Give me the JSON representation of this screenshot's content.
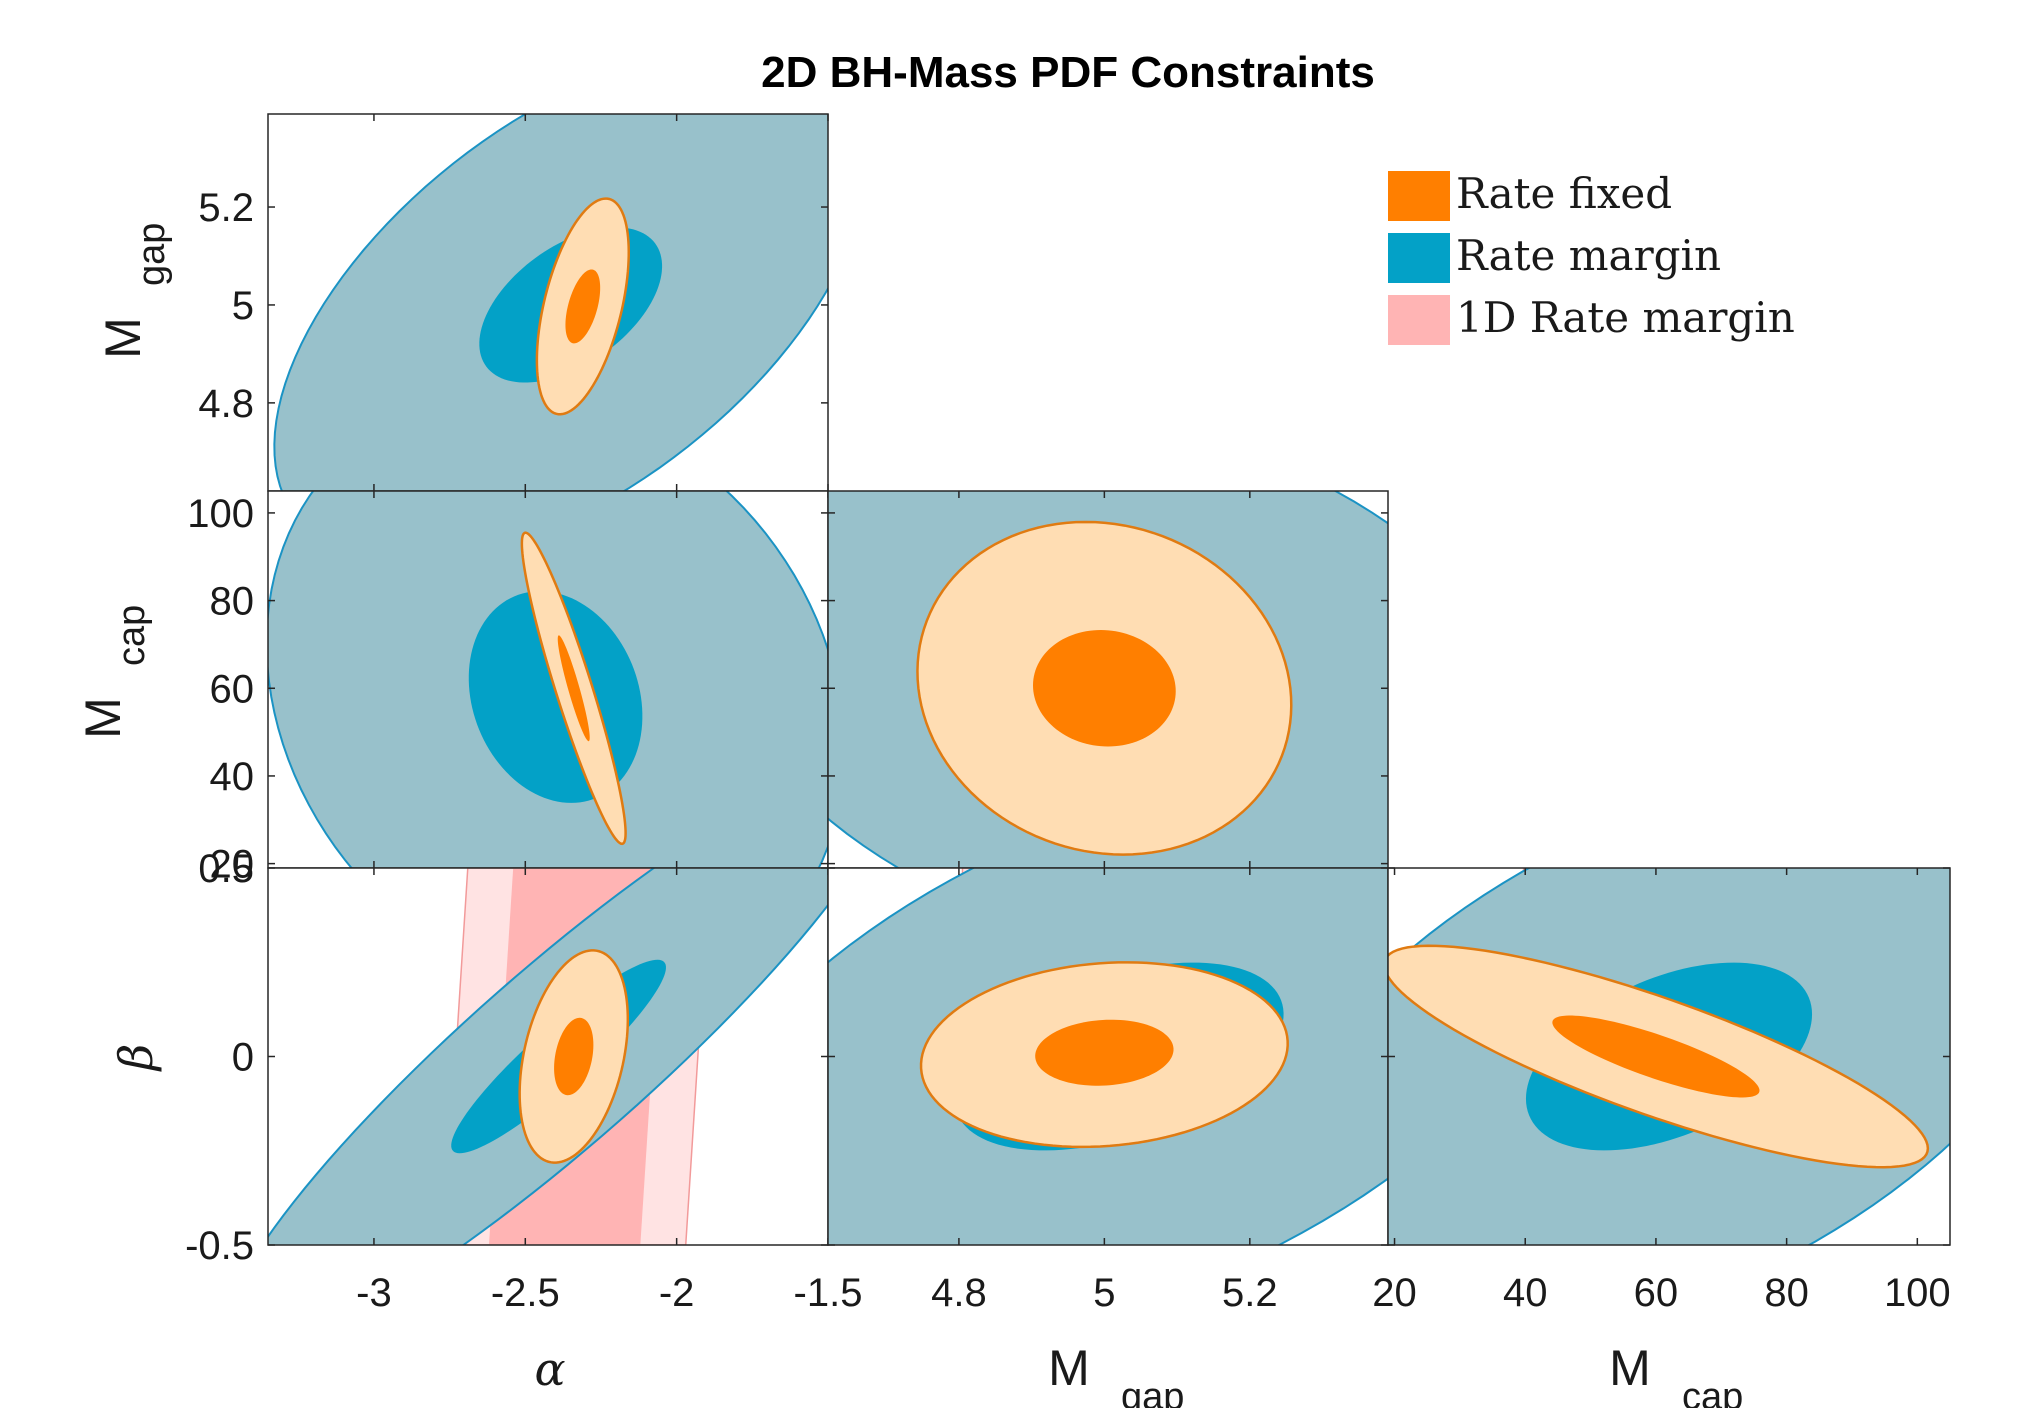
{
  "chart_data": {
    "type": "contour-corner-plot",
    "title": "2D BH-Mass PDF Constraints",
    "variables": [
      {
        "key": "alpha",
        "symbol": "α",
        "subscript": "",
        "range": [
          -3.35,
          -1.5
        ],
        "ticks": [
          -3,
          -2.5,
          -2,
          -1.5
        ],
        "tick_labels": [
          "-3",
          "-2.5",
          "-2",
          "-1.5"
        ]
      },
      {
        "key": "mgap",
        "symbol": "M",
        "subscript": "gap",
        "range": [
          4.62,
          5.39
        ],
        "ticks": [
          4.8,
          5,
          5.2
        ],
        "tick_labels": [
          "4.8",
          "5",
          "5.2"
        ]
      },
      {
        "key": "mcap",
        "symbol": "M",
        "subscript": "cap",
        "range": [
          19,
          105
        ],
        "ticks": [
          20,
          40,
          60,
          80,
          100
        ],
        "tick_labels": [
          "20",
          "40",
          "60",
          "80",
          "100"
        ]
      },
      {
        "key": "beta",
        "symbol": "β",
        "subscript": "",
        "range": [
          -0.5,
          0.5
        ],
        "ticks": [
          -0.5,
          0,
          0.5
        ],
        "tick_labels": [
          "-0.5",
          "0",
          "0.5"
        ]
      }
    ],
    "legend": {
      "position": "top-right",
      "entries": [
        {
          "label": "Rate fixed",
          "color": "#ff7f00"
        },
        {
          "label": "Rate margin",
          "color": "#03a1c7"
        },
        {
          "label": "1D Rate margin",
          "color": "#ffb4b4"
        }
      ]
    },
    "colors": {
      "rate_fixed_inner": "#ff7f00",
      "rate_fixed_outer": "#ffddb3",
      "rate_fixed_edge": "#e07b12",
      "rate_margin_inner": "#03a1c7",
      "rate_margin_outer": "#98c1cb",
      "rate_margin_edge": "#1b93c4",
      "band_inner": "#ffb4b4",
      "band_outer": "#ffe3e3",
      "band_edge": "#f29a9a"
    },
    "panels": [
      {
        "name": "alpha-vs-mgap",
        "x": "alpha",
        "y": "mgap",
        "contours": [
          {
            "name": "rate-margin-95",
            "cx": -2.35,
            "cy": 5.0,
            "sx": 0.4,
            "sy": 0.215,
            "rho": 0.55,
            "level": 0.95
          },
          {
            "name": "rate-margin-68",
            "cx": -2.35,
            "cy": 5.0,
            "sx": 0.2,
            "sy": 0.105,
            "rho": 0.5,
            "level": 0.68
          },
          {
            "name": "rate-fixed-95",
            "cx": -2.31,
            "cy": 4.997,
            "sx": 0.062,
            "sy": 0.09,
            "rho": 0.5,
            "level": 0.95
          },
          {
            "name": "rate-fixed-68",
            "cx": -2.31,
            "cy": 4.997,
            "sx": 0.038,
            "sy": 0.05,
            "rho": 0.5,
            "level": 0.68
          }
        ]
      },
      {
        "name": "alpha-vs-mcap",
        "x": "alpha",
        "y": "mcap",
        "contours": [
          {
            "name": "rate-margin-95",
            "cx": -2.4,
            "cy": 58,
            "sx": 0.39,
            "sy": 28,
            "rho": -0.18,
            "level": 0.95
          },
          {
            "name": "rate-margin-68",
            "cx": -2.4,
            "cy": 58,
            "sx": 0.19,
            "sy": 16,
            "rho": -0.18,
            "level": 0.68
          },
          {
            "name": "rate-fixed-95",
            "cx": -2.34,
            "cy": 60,
            "sx": 0.07,
            "sy": 14.5,
            "rho": -0.93,
            "level": 0.95
          },
          {
            "name": "rate-fixed-68",
            "cx": -2.34,
            "cy": 60,
            "sx": 0.035,
            "sy": 8,
            "rho": -0.93,
            "level": 0.68
          }
        ]
      },
      {
        "name": "mgap-vs-mcap",
        "x": "mgap",
        "y": "mcap",
        "contours": [
          {
            "name": "rate-margin-95",
            "cx": 5.03,
            "cy": 60.8,
            "sx": 0.232,
            "sy": 25.5,
            "rho": -0.25,
            "level": 0.95
          },
          {
            "name": "rate-margin-68",
            "cx": 5.03,
            "cy": 60.8,
            "sx": 0.14,
            "sy": 14,
            "rho": -0.25,
            "level": 0.68
          },
          {
            "name": "rate-fixed-95",
            "cx": 5.0,
            "cy": 60,
            "sx": 0.105,
            "sy": 15.5,
            "rho": -0.1,
            "level": 0.95
          },
          {
            "name": "rate-fixed-68",
            "cx": 5.0,
            "cy": 60,
            "sx": 0.065,
            "sy": 8.8,
            "rho": -0.05,
            "level": 0.68
          }
        ]
      },
      {
        "name": "alpha-vs-beta",
        "x": "alpha",
        "y": "beta",
        "band": {
          "inner": [
            -2.58,
            -2.08
          ],
          "outer": [
            -2.73,
            -1.93
          ],
          "tilt": 0.08
        },
        "contours": [
          {
            "name": "rate-margin-95",
            "cx": -2.39,
            "cy": 0.0,
            "sx": 0.45,
            "sy": 0.32,
            "rho": 0.92,
            "level": 0.95
          },
          {
            "name": "rate-margin-68",
            "cx": -2.39,
            "cy": 0.0,
            "sx": 0.235,
            "sy": 0.17,
            "rho": 0.92,
            "level": 0.68
          },
          {
            "name": "rate-fixed-95",
            "cx": -2.34,
            "cy": 0.0,
            "sx": 0.073,
            "sy": 0.115,
            "rho": 0.35,
            "level": 0.95
          },
          {
            "name": "rate-fixed-68",
            "cx": -2.34,
            "cy": 0.0,
            "sx": 0.043,
            "sy": 0.068,
            "rho": 0.3,
            "level": 0.68
          }
        ]
      },
      {
        "name": "mgap-vs-beta",
        "x": "mgap",
        "y": "beta",
        "band": {
          "inner": [
            4.87,
            5.11
          ],
          "outer": [
            4.8,
            5.18
          ],
          "tilt": 0.01
        },
        "contours": [
          {
            "name": "rate-margin-95",
            "cx": 5.03,
            "cy": 0.0,
            "sx": 0.25,
            "sy": 0.31,
            "rho": 0.48,
            "level": 0.95
          },
          {
            "name": "rate-margin-68",
            "cx": 5.02,
            "cy": 0.0,
            "sx": 0.15,
            "sy": 0.165,
            "rho": 0.45,
            "level": 0.68
          },
          {
            "name": "rate-fixed-95",
            "cx": 5.0,
            "cy": 0.005,
            "sx": 0.103,
            "sy": 0.1,
            "rho": 0.12,
            "level": 0.95
          },
          {
            "name": "rate-fixed-68",
            "cx": 5.0,
            "cy": 0.01,
            "sx": 0.063,
            "sy": 0.058,
            "rho": 0.1,
            "level": 0.68
          }
        ]
      },
      {
        "name": "mcap-vs-beta",
        "x": "mcap",
        "y": "beta",
        "band": {
          "inner": [
            47,
            73
          ],
          "outer": [
            39.5,
            80
          ],
          "tilt": 0.5
        },
        "contours": [
          {
            "name": "rate-margin-95",
            "cx": 62,
            "cy": 0.0,
            "sx": 25.5,
            "sy": 0.31,
            "rho": 0.48,
            "level": 0.95
          },
          {
            "name": "rate-margin-68",
            "cx": 62,
            "cy": 0.0,
            "sx": 14.5,
            "sy": 0.165,
            "rho": 0.45,
            "level": 0.68
          },
          {
            "name": "rate-fixed-95",
            "cx": 60,
            "cy": 0.0,
            "sx": 17,
            "sy": 0.12,
            "rho": -0.83,
            "level": 0.95
          },
          {
            "name": "rate-fixed-68",
            "cx": 60,
            "cy": 0.0,
            "sx": 10.5,
            "sy": 0.072,
            "rho": -0.83,
            "level": 0.68
          }
        ]
      }
    ]
  }
}
